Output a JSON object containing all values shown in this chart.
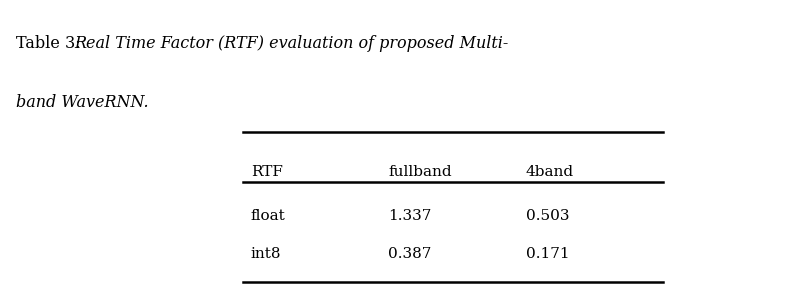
{
  "title_prefix": "Table 3: ",
  "title_italic": "Real Time Factor (RTF) evaluation of proposed Multi-\nband WaveRNN.",
  "col_headers": [
    "RTF",
    "fullband",
    "4band"
  ],
  "rows": [
    [
      "float",
      "1.337",
      "0.503"
    ],
    [
      "int8",
      "0.387",
      "0.171"
    ]
  ],
  "bg_color": "#ffffff",
  "text_color": "#000000",
  "font_size": 11,
  "title_font_size": 11.5
}
